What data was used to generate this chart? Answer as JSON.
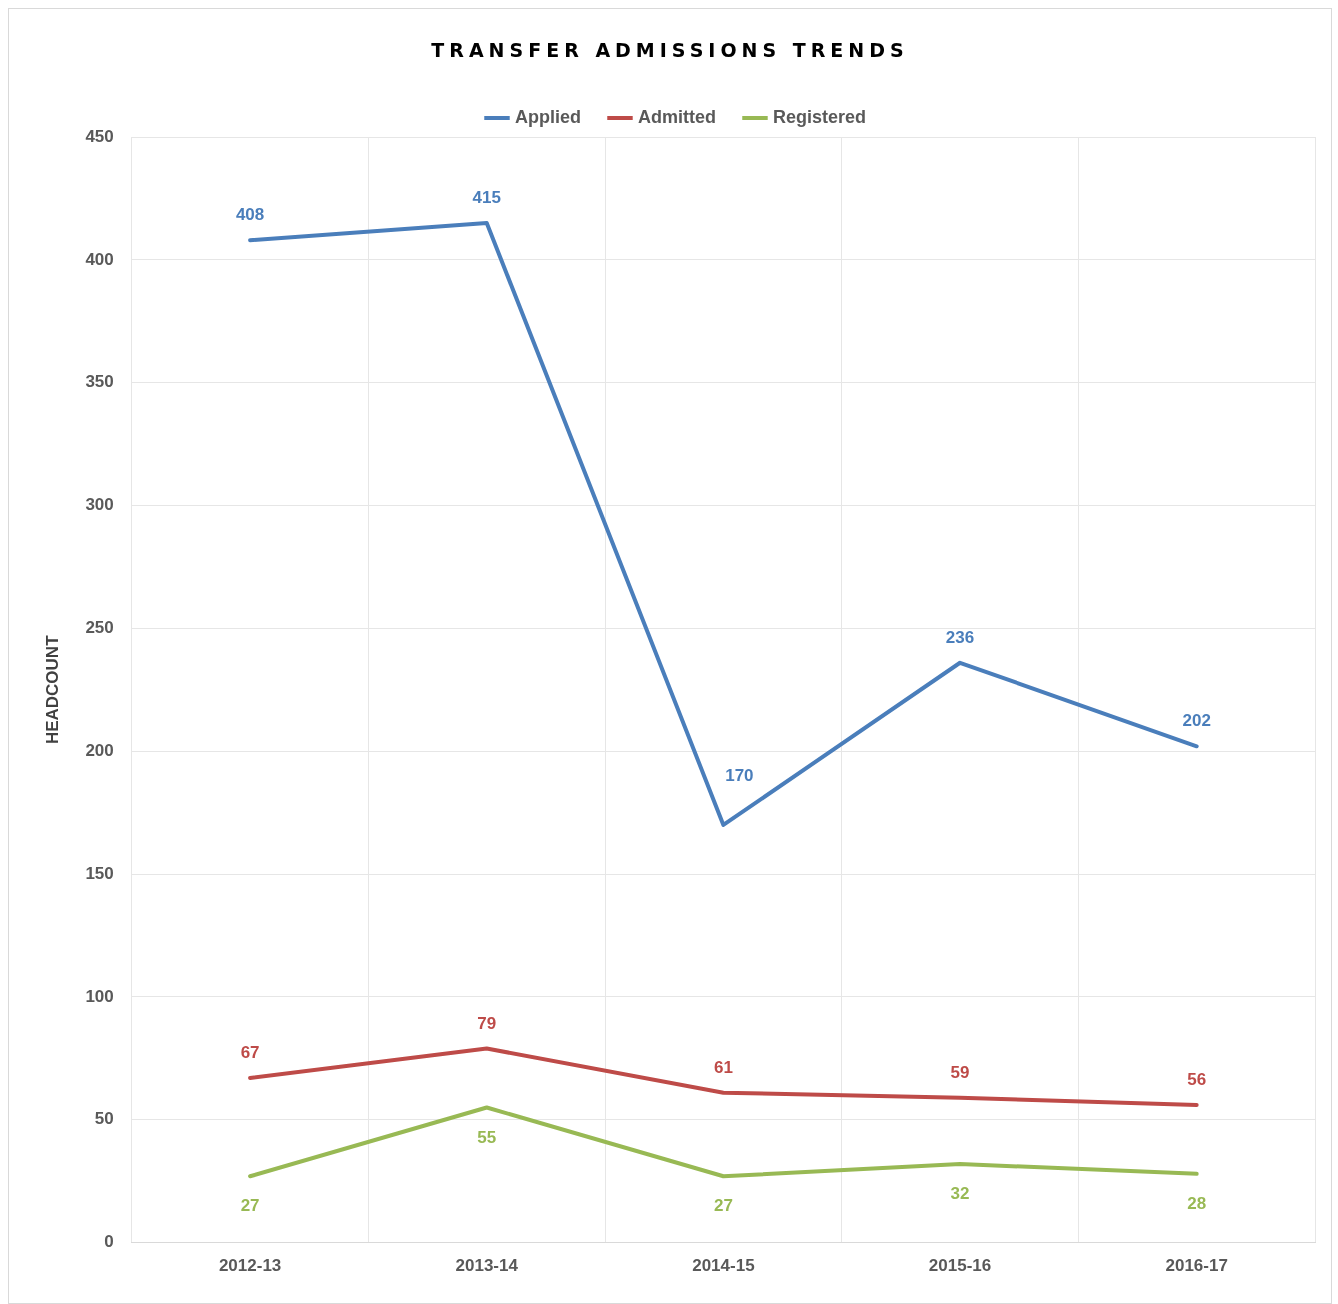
{
  "chart_data": {
    "type": "line",
    "title": "TRANSFER ADMISSIONS TRENDS",
    "ylabel": "HEADCOUNT",
    "categories": [
      "2012-13",
      "2013-14",
      "2014-15",
      "2015-16",
      "2016-17"
    ],
    "series": [
      {
        "name": "Applied",
        "color": "#4a7ebb",
        "values": [
          408,
          415,
          170,
          236,
          202
        ]
      },
      {
        "name": "Admitted",
        "color": "#be4b48",
        "values": [
          67,
          79,
          61,
          59,
          56
        ]
      },
      {
        "name": "Registered",
        "color": "#98b954",
        "values": [
          27,
          55,
          27,
          32,
          28
        ]
      }
    ],
    "ylim": [
      0,
      450
    ],
    "yticks": [
      0,
      50,
      100,
      150,
      200,
      250,
      300,
      350,
      400,
      450
    ],
    "grid": true,
    "legend": "top",
    "marker": "none",
    "line_style": "solid",
    "data_labels": true
  }
}
